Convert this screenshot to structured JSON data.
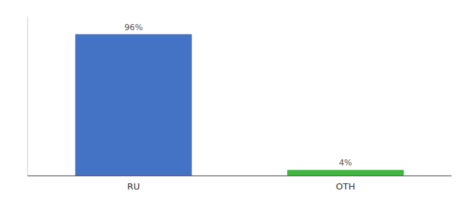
{
  "chart_data": {
    "type": "bar",
    "categories": [
      "RU",
      "OTH"
    ],
    "values": [
      96,
      4
    ],
    "value_labels": [
      "96%",
      "4%"
    ],
    "colors": [
      "#4472C4",
      "#3CB93C"
    ],
    "ylim": [
      0,
      108
    ],
    "data_labels": true,
    "tick_labels": "x",
    "grid": false
  }
}
